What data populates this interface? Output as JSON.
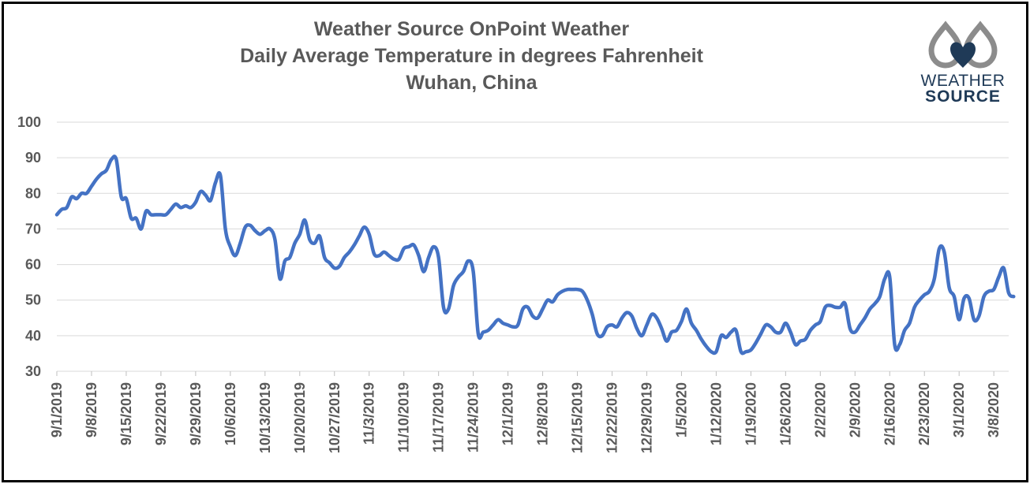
{
  "chart_data": {
    "type": "line",
    "title_lines": [
      "Weather Source OnPoint Weather",
      "Daily Average Temperature in degrees Fahrenheit",
      "Wuhan, China"
    ],
    "xlabel": "",
    "ylabel": "",
    "ylim": [
      30,
      100
    ],
    "yticks": [
      30,
      40,
      50,
      60,
      70,
      80,
      90,
      100
    ],
    "xlim": [
      "2019-09-01",
      "2020-03-11"
    ],
    "x_tick_labels": [
      "9/1/2019",
      "9/8/2019",
      "9/15/2019",
      "9/22/2019",
      "9/29/2019",
      "10/6/2019",
      "10/13/2019",
      "10/20/2019",
      "10/27/2019",
      "11/3/2019",
      "11/10/2019",
      "11/17/2019",
      "11/24/2019",
      "12/1/2019",
      "12/8/2019",
      "12/15/2019",
      "12/22/2019",
      "12/29/2019",
      "1/5/2020",
      "1/12/2020",
      "1/19/2020",
      "1/26/2020",
      "2/2/2020",
      "2/9/2020",
      "2/16/2020",
      "2/23/2020",
      "3/1/2020",
      "3/8/2020"
    ],
    "grid": true,
    "legend": "none",
    "series": [
      {
        "color": "#4472c4",
        "points": [
          [
            "2019-09-01",
            74
          ],
          [
            "2019-09-02",
            75.5
          ],
          [
            "2019-09-03",
            76
          ],
          [
            "2019-09-04",
            79
          ],
          [
            "2019-09-05",
            78.5
          ],
          [
            "2019-09-06",
            80
          ],
          [
            "2019-09-07",
            80
          ],
          [
            "2019-09-08",
            82
          ],
          [
            "2019-09-09",
            84
          ],
          [
            "2019-09-10",
            85.5
          ],
          [
            "2019-09-11",
            86.5
          ],
          [
            "2019-09-12",
            89.5
          ],
          [
            "2019-09-13",
            89.5
          ],
          [
            "2019-09-14",
            79
          ],
          [
            "2019-09-15",
            78.5
          ],
          [
            "2019-09-16",
            73
          ],
          [
            "2019-09-17",
            73
          ],
          [
            "2019-09-18",
            70
          ],
          [
            "2019-09-19",
            75
          ],
          [
            "2019-09-20",
            74
          ],
          [
            "2019-09-21",
            74
          ],
          [
            "2019-09-22",
            74
          ],
          [
            "2019-09-23",
            74
          ],
          [
            "2019-09-24",
            75.5
          ],
          [
            "2019-09-25",
            77
          ],
          [
            "2019-09-26",
            76
          ],
          [
            "2019-09-27",
            76.5
          ],
          [
            "2019-09-28",
            76
          ],
          [
            "2019-09-29",
            77.5
          ],
          [
            "2019-09-30",
            80.5
          ],
          [
            "2019-10-01",
            79.5
          ],
          [
            "2019-10-02",
            78
          ],
          [
            "2019-10-03",
            83
          ],
          [
            "2019-10-04",
            85
          ],
          [
            "2019-10-05",
            70
          ],
          [
            "2019-10-06",
            65
          ],
          [
            "2019-10-07",
            62.5
          ],
          [
            "2019-10-08",
            66
          ],
          [
            "2019-10-09",
            70.5
          ],
          [
            "2019-10-10",
            71
          ],
          [
            "2019-10-11",
            69.5
          ],
          [
            "2019-10-12",
            68.5
          ],
          [
            "2019-10-13",
            69.5
          ],
          [
            "2019-10-14",
            70
          ],
          [
            "2019-10-15",
            67
          ],
          [
            "2019-10-16",
            56
          ],
          [
            "2019-10-17",
            61
          ],
          [
            "2019-10-18",
            62
          ],
          [
            "2019-10-19",
            66
          ],
          [
            "2019-10-20",
            68.5
          ],
          [
            "2019-10-21",
            72.5
          ],
          [
            "2019-10-22",
            67
          ],
          [
            "2019-10-23",
            66
          ],
          [
            "2019-10-24",
            68
          ],
          [
            "2019-10-25",
            62
          ],
          [
            "2019-10-26",
            60.5
          ],
          [
            "2019-10-27",
            59
          ],
          [
            "2019-10-28",
            59.5
          ],
          [
            "2019-10-29",
            62
          ],
          [
            "2019-10-30",
            63.5
          ],
          [
            "2019-10-31",
            65.5
          ],
          [
            "2019-11-01",
            68
          ],
          [
            "2019-11-02",
            70.5
          ],
          [
            "2019-11-03",
            68.5
          ],
          [
            "2019-11-04",
            63
          ],
          [
            "2019-11-05",
            62.5
          ],
          [
            "2019-11-06",
            63.5
          ],
          [
            "2019-11-07",
            62.5
          ],
          [
            "2019-11-08",
            61.5
          ],
          [
            "2019-11-09",
            61.5
          ],
          [
            "2019-11-10",
            64.5
          ],
          [
            "2019-11-11",
            65
          ],
          [
            "2019-11-12",
            65.5
          ],
          [
            "2019-11-13",
            62.5
          ],
          [
            "2019-11-14",
            58
          ],
          [
            "2019-11-15",
            62
          ],
          [
            "2019-11-16",
            65
          ],
          [
            "2019-11-17",
            62
          ],
          [
            "2019-11-18",
            48
          ],
          [
            "2019-11-19",
            47.5
          ],
          [
            "2019-11-20",
            54
          ],
          [
            "2019-11-21",
            56.5
          ],
          [
            "2019-11-22",
            58
          ],
          [
            "2019-11-23",
            61
          ],
          [
            "2019-11-24",
            58
          ],
          [
            "2019-11-25",
            40.5
          ],
          [
            "2019-11-26",
            41
          ],
          [
            "2019-11-27",
            41.5
          ],
          [
            "2019-11-28",
            43
          ],
          [
            "2019-11-29",
            44.5
          ],
          [
            "2019-11-30",
            43.5
          ],
          [
            "2019-12-01",
            43
          ],
          [
            "2019-12-02",
            42.5
          ],
          [
            "2019-12-03",
            43
          ],
          [
            "2019-12-04",
            47.5
          ],
          [
            "2019-12-05",
            48
          ],
          [
            "2019-12-06",
            45.5
          ],
          [
            "2019-12-07",
            45
          ],
          [
            "2019-12-08",
            47.5
          ],
          [
            "2019-12-09",
            50
          ],
          [
            "2019-12-10",
            49.5
          ],
          [
            "2019-12-11",
            51.5
          ],
          [
            "2019-12-12",
            52.5
          ],
          [
            "2019-12-13",
            53
          ],
          [
            "2019-12-14",
            53
          ],
          [
            "2019-12-15",
            53
          ],
          [
            "2019-12-16",
            52.5
          ],
          [
            "2019-12-17",
            50
          ],
          [
            "2019-12-18",
            46
          ],
          [
            "2019-12-19",
            40.5
          ],
          [
            "2019-12-20",
            40
          ],
          [
            "2019-12-21",
            42.5
          ],
          [
            "2019-12-22",
            43
          ],
          [
            "2019-12-23",
            42.5
          ],
          [
            "2019-12-24",
            45
          ],
          [
            "2019-12-25",
            46.5
          ],
          [
            "2019-12-26",
            45.5
          ],
          [
            "2019-12-27",
            42
          ],
          [
            "2019-12-28",
            40
          ],
          [
            "2019-12-29",
            43
          ],
          [
            "2019-12-30",
            46
          ],
          [
            "2019-12-31",
            45
          ],
          [
            "2020-01-01",
            42
          ],
          [
            "2020-01-02",
            38.5
          ],
          [
            "2020-01-03",
            41
          ],
          [
            "2020-01-04",
            41.5
          ],
          [
            "2020-01-05",
            44
          ],
          [
            "2020-01-06",
            47.5
          ],
          [
            "2020-01-07",
            43.5
          ],
          [
            "2020-01-08",
            41.5
          ],
          [
            "2020-01-09",
            39
          ],
          [
            "2020-01-10",
            37
          ],
          [
            "2020-01-11",
            35.5
          ],
          [
            "2020-01-12",
            35.5
          ],
          [
            "2020-01-13",
            40
          ],
          [
            "2020-01-14",
            39.5
          ],
          [
            "2020-01-15",
            41
          ],
          [
            "2020-01-16",
            41.5
          ],
          [
            "2020-01-17",
            35.5
          ],
          [
            "2020-01-18",
            35.5
          ],
          [
            "2020-01-19",
            36
          ],
          [
            "2020-01-20",
            38
          ],
          [
            "2020-01-21",
            40.5
          ],
          [
            "2020-01-22",
            43
          ],
          [
            "2020-01-23",
            42.5
          ],
          [
            "2020-01-24",
            41
          ],
          [
            "2020-01-25",
            41
          ],
          [
            "2020-01-26",
            43.5
          ],
          [
            "2020-01-27",
            41
          ],
          [
            "2020-01-28",
            37.5
          ],
          [
            "2020-01-29",
            38.5
          ],
          [
            "2020-01-30",
            39
          ],
          [
            "2020-01-31",
            41.5
          ],
          [
            "2020-02-01",
            43
          ],
          [
            "2020-02-02",
            44
          ],
          [
            "2020-02-03",
            48
          ],
          [
            "2020-02-04",
            48.5
          ],
          [
            "2020-02-05",
            48
          ],
          [
            "2020-02-06",
            48
          ],
          [
            "2020-02-07",
            49
          ],
          [
            "2020-02-08",
            42
          ],
          [
            "2020-02-09",
            41
          ],
          [
            "2020-02-10",
            43
          ],
          [
            "2020-02-11",
            45
          ],
          [
            "2020-02-12",
            47.5
          ],
          [
            "2020-02-13",
            49
          ],
          [
            "2020-02-14",
            51
          ],
          [
            "2020-02-15",
            56
          ],
          [
            "2020-02-16",
            56.5
          ],
          [
            "2020-02-17",
            37.5
          ],
          [
            "2020-02-18",
            37.5
          ],
          [
            "2020-02-19",
            41.5
          ],
          [
            "2020-02-20",
            43.5
          ],
          [
            "2020-02-21",
            48
          ],
          [
            "2020-02-22",
            50
          ],
          [
            "2020-02-23",
            51.5
          ],
          [
            "2020-02-24",
            52.5
          ],
          [
            "2020-02-25",
            56
          ],
          [
            "2020-02-26",
            64.5
          ],
          [
            "2020-02-27",
            63.5
          ],
          [
            "2020-02-28",
            53.5
          ],
          [
            "2020-02-29",
            51
          ],
          [
            "2020-03-01",
            44.5
          ],
          [
            "2020-03-02",
            50.5
          ],
          [
            "2020-03-03",
            50.5
          ],
          [
            "2020-03-04",
            44.5
          ],
          [
            "2020-03-05",
            45.5
          ],
          [
            "2020-03-06",
            51
          ],
          [
            "2020-03-07",
            52.5
          ],
          [
            "2020-03-08",
            53
          ],
          [
            "2020-03-09",
            56.5
          ],
          [
            "2020-03-10",
            59
          ],
          [
            "2020-03-11",
            52
          ],
          [
            "2020-03-12",
            51
          ]
        ]
      }
    ]
  },
  "logo": {
    "line1": "WEATHER",
    "line2": "SOURCE",
    "colors": {
      "drop_gray": "#8c8c8c",
      "drop_dark": "#1f3a57"
    }
  }
}
